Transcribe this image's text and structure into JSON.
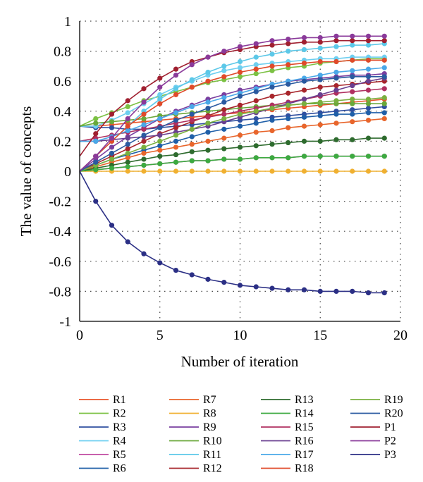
{
  "chart_data": {
    "type": "line",
    "title": "",
    "xlabel": "Number of iteration",
    "ylabel": "The value of concepts",
    "xlim": [
      0,
      20
    ],
    "ylim": [
      -1,
      1
    ],
    "x_ticks": [
      0,
      5,
      10,
      15,
      20
    ],
    "y_ticks": [
      -1,
      -0.8,
      -0.6,
      -0.4,
      -0.2,
      0,
      0.2,
      0.4,
      0.6,
      0.8,
      1
    ],
    "x_tick_labels": [
      "0",
      "5",
      "10",
      "15",
      "20"
    ],
    "y_tick_labels": [
      "-1",
      "-0.8",
      "-0.6",
      "-0.4",
      "-0.2",
      "0",
      "0.2",
      "0.4",
      "0.6",
      "0.8",
      "1"
    ],
    "grid": "dotted",
    "legend_position": "bottom",
    "x": [
      0,
      1,
      2,
      3,
      4,
      5,
      6,
      7,
      8,
      9,
      10,
      11,
      12,
      13,
      14,
      15,
      16,
      17,
      18,
      19
    ],
    "series": [
      {
        "name": "R1",
        "color": "#e8552b",
        "values": [
          0.3,
          0.3,
          0.31,
          0.32,
          0.33,
          0.34,
          0.35,
          0.36,
          0.37,
          0.38,
          0.39,
          0.4,
          0.41,
          0.42,
          0.43,
          0.44,
          0.45,
          0.46,
          0.47,
          0.48
        ]
      },
      {
        "name": "R2",
        "color": "#7bc143",
        "values": [
          0.3,
          0.35,
          0.39,
          0.43,
          0.47,
          0.5,
          0.53,
          0.56,
          0.59,
          0.61,
          0.63,
          0.65,
          0.67,
          0.69,
          0.7,
          0.72,
          0.73,
          0.74,
          0.75,
          0.75
        ]
      },
      {
        "name": "R3",
        "color": "#2f4fa0",
        "values": [
          0.3,
          0.29,
          0.29,
          0.28,
          0.28,
          0.29,
          0.3,
          0.31,
          0.32,
          0.33,
          0.34,
          0.35,
          0.36,
          0.37,
          0.38,
          0.39,
          0.4,
          0.41,
          0.42,
          0.43
        ]
      },
      {
        "name": "R4",
        "color": "#6ecff0",
        "values": [
          0.3,
          0.3,
          0.34,
          0.39,
          0.45,
          0.51,
          0.56,
          0.6,
          0.64,
          0.67,
          0.69,
          0.71,
          0.72,
          0.73,
          0.74,
          0.75,
          0.75,
          0.76,
          0.76,
          0.76
        ]
      },
      {
        "name": "R5",
        "color": "#c04aa0",
        "values": [
          0.0,
          0.01,
          0.02,
          0.03,
          0.04,
          0.05,
          0.06,
          0.07,
          0.07,
          0.08,
          0.08,
          0.09,
          0.09,
          0.09,
          0.1,
          0.1,
          0.1,
          0.1,
          0.1,
          0.1
        ]
      },
      {
        "name": "R6",
        "color": "#1f5fa8",
        "values": [
          0.0,
          0.04,
          0.08,
          0.11,
          0.14,
          0.17,
          0.2,
          0.23,
          0.26,
          0.28,
          0.3,
          0.32,
          0.34,
          0.35,
          0.36,
          0.37,
          0.38,
          0.38,
          0.39,
          0.39
        ]
      },
      {
        "name": "R7",
        "color": "#e8652b",
        "values": [
          0.0,
          0.03,
          0.06,
          0.09,
          0.12,
          0.14,
          0.16,
          0.18,
          0.2,
          0.22,
          0.24,
          0.26,
          0.27,
          0.29,
          0.3,
          0.31,
          0.32,
          0.33,
          0.34,
          0.35
        ]
      },
      {
        "name": "R8",
        "color": "#f0b030",
        "values": [
          0.0,
          0.0,
          0.0,
          0.0,
          0.0,
          0.0,
          0.0,
          0.0,
          0.0,
          0.0,
          0.0,
          0.0,
          0.0,
          0.0,
          0.0,
          0.0,
          0.0,
          0.0,
          0.0,
          0.0
        ]
      },
      {
        "name": "R9",
        "color": "#7a3fa0",
        "values": [
          0.0,
          0.08,
          0.16,
          0.23,
          0.29,
          0.35,
          0.4,
          0.44,
          0.48,
          0.51,
          0.54,
          0.56,
          0.58,
          0.6,
          0.61,
          0.62,
          0.63,
          0.64,
          0.64,
          0.65
        ]
      },
      {
        "name": "R10",
        "color": "#6aa83a",
        "values": [
          0.3,
          0.32,
          0.33,
          0.34,
          0.35,
          0.37,
          0.38,
          0.39,
          0.4,
          0.41,
          0.42,
          0.43,
          0.44,
          0.44,
          0.45,
          0.45,
          0.45,
          0.45,
          0.45,
          0.45
        ]
      },
      {
        "name": "R11",
        "color": "#5cc8e8",
        "values": [
          0.0,
          0.1,
          0.2,
          0.3,
          0.4,
          0.48,
          0.55,
          0.61,
          0.66,
          0.7,
          0.73,
          0.76,
          0.78,
          0.8,
          0.81,
          0.82,
          0.83,
          0.84,
          0.84,
          0.85
        ]
      },
      {
        "name": "R12",
        "color": "#a8262c",
        "values": [
          0.0,
          0.05,
          0.1,
          0.15,
          0.2,
          0.25,
          0.29,
          0.33,
          0.37,
          0.41,
          0.44,
          0.47,
          0.5,
          0.52,
          0.54,
          0.56,
          0.57,
          0.58,
          0.59,
          0.6
        ]
      },
      {
        "name": "R13",
        "color": "#2e6b2e",
        "values": [
          0.0,
          0.02,
          0.04,
          0.06,
          0.08,
          0.1,
          0.11,
          0.13,
          0.14,
          0.15,
          0.16,
          0.17,
          0.18,
          0.19,
          0.2,
          0.2,
          0.21,
          0.21,
          0.22,
          0.22
        ]
      },
      {
        "name": "R14",
        "color": "#3caa40",
        "values": [
          0.0,
          0.01,
          0.02,
          0.03,
          0.04,
          0.05,
          0.06,
          0.07,
          0.07,
          0.08,
          0.08,
          0.09,
          0.09,
          0.09,
          0.1,
          0.1,
          0.1,
          0.1,
          0.1,
          0.1
        ]
      },
      {
        "name": "R15",
        "color": "#b03060",
        "values": [
          0.2,
          0.22,
          0.24,
          0.26,
          0.28,
          0.3,
          0.32,
          0.34,
          0.36,
          0.38,
          0.4,
          0.42,
          0.44,
          0.46,
          0.48,
          0.5,
          0.52,
          0.53,
          0.54,
          0.55
        ]
      },
      {
        "name": "R16",
        "color": "#6a3f90",
        "values": [
          0.2,
          0.2,
          0.21,
          0.22,
          0.23,
          0.24,
          0.26,
          0.28,
          0.3,
          0.33,
          0.36,
          0.39,
          0.42,
          0.45,
          0.48,
          0.51,
          0.54,
          0.57,
          0.6,
          0.62
        ]
      },
      {
        "name": "R17",
        "color": "#4aa8e8",
        "values": [
          0.2,
          0.2,
          0.23,
          0.27,
          0.31,
          0.35,
          0.39,
          0.43,
          0.46,
          0.49,
          0.52,
          0.55,
          0.58,
          0.6,
          0.62,
          0.64,
          0.66,
          0.67,
          0.68,
          0.69
        ]
      },
      {
        "name": "R18",
        "color": "#e04a2a",
        "values": [
          0.0,
          0.1,
          0.2,
          0.3,
          0.38,
          0.45,
          0.51,
          0.56,
          0.6,
          0.63,
          0.66,
          0.68,
          0.7,
          0.71,
          0.72,
          0.73,
          0.73,
          0.74,
          0.74,
          0.74
        ]
      },
      {
        "name": "R19",
        "color": "#7ab040",
        "values": [
          0.0,
          0.04,
          0.08,
          0.12,
          0.16,
          0.2,
          0.24,
          0.28,
          0.32,
          0.35,
          0.38,
          0.4,
          0.42,
          0.44,
          0.45,
          0.46,
          0.47,
          0.48,
          0.48,
          0.49
        ]
      },
      {
        "name": "R20",
        "color": "#2a5aa0",
        "values": [
          0.0,
          0.06,
          0.12,
          0.18,
          0.24,
          0.29,
          0.34,
          0.38,
          0.42,
          0.46,
          0.5,
          0.53,
          0.56,
          0.58,
          0.6,
          0.61,
          0.62,
          0.63,
          0.63,
          0.63
        ]
      },
      {
        "name": "P1",
        "color": "#a02030",
        "values": [
          0.1,
          0.25,
          0.38,
          0.47,
          0.55,
          0.62,
          0.68,
          0.73,
          0.76,
          0.79,
          0.81,
          0.83,
          0.84,
          0.85,
          0.86,
          0.86,
          0.87,
          0.87,
          0.87,
          0.87
        ]
      },
      {
        "name": "P2",
        "color": "#8a3a9a",
        "values": [
          0.0,
          0.1,
          0.22,
          0.35,
          0.46,
          0.56,
          0.64,
          0.71,
          0.76,
          0.8,
          0.83,
          0.85,
          0.87,
          0.88,
          0.89,
          0.89,
          0.9,
          0.9,
          0.9,
          0.9
        ]
      },
      {
        "name": "P3",
        "color": "#2b2f85",
        "values": [
          0.0,
          -0.2,
          -0.36,
          -0.47,
          -0.55,
          -0.61,
          -0.66,
          -0.69,
          -0.72,
          -0.74,
          -0.76,
          -0.77,
          -0.78,
          -0.79,
          -0.79,
          -0.8,
          -0.8,
          -0.8,
          -0.81,
          -0.81
        ]
      }
    ]
  }
}
